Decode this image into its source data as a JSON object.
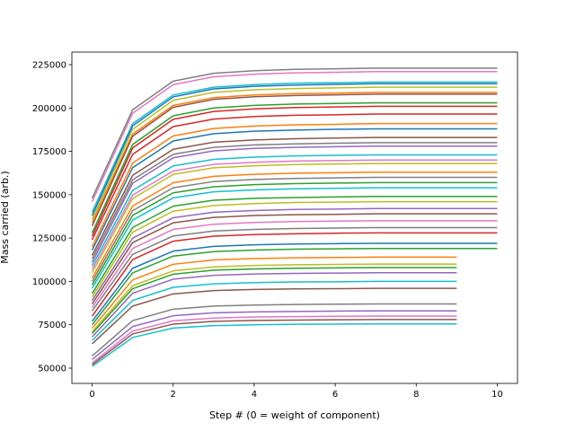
{
  "chart_data": {
    "type": "line",
    "xlabel": "Step # (0 = weight of component)",
    "ylabel": "Mass carried (arb.)",
    "x": [
      0,
      1,
      2,
      3,
      4,
      5,
      6,
      7,
      8,
      9,
      10
    ],
    "xlim": [
      -0.5,
      10.5
    ],
    "xticks": [
      0,
      2,
      4,
      6,
      8,
      10
    ],
    "ylim": [
      41200,
      232250
    ],
    "yticks": [
      50000,
      75000,
      100000,
      125000,
      150000,
      175000,
      200000,
      225000
    ],
    "grid": false,
    "series": [
      {
        "color": "#7f7f7f",
        "values": [
          148000,
          199000,
          215500,
          220000,
          221500,
          222300,
          222600,
          223000,
          223000,
          223000,
          223000
        ]
      },
      {
        "color": "#e377c2",
        "values": [
          146000,
          197000,
          213500,
          218000,
          219500,
          220300,
          220600,
          221000,
          221000,
          221000,
          221000
        ]
      },
      {
        "color": "#17becf",
        "values": [
          140000,
          191000,
          207500,
          212000,
          213500,
          214300,
          214600,
          215000,
          215000,
          215000,
          215000
        ]
      },
      {
        "color": "#1f77b4",
        "values": [
          138000,
          189700,
          206400,
          211000,
          212500,
          213200,
          213600,
          214000,
          214000,
          214000,
          214000
        ]
      },
      {
        "color": "#bcbd22",
        "values": [
          136000,
          187700,
          204400,
          209000,
          210500,
          211200,
          211600,
          212000,
          212000,
          212000,
          212000
        ]
      },
      {
        "color": "#ff7f0e",
        "values": [
          134000,
          185000,
          201500,
          206000,
          207500,
          208300,
          208600,
          209000,
          209000,
          209000,
          209000
        ]
      },
      {
        "color": "#8c564b",
        "values": [
          132000,
          183700,
          200400,
          205000,
          206500,
          207200,
          207600,
          208000,
          208000,
          208000,
          208000
        ]
      },
      {
        "color": "#2ca02c",
        "values": [
          128000,
          179000,
          195500,
          200000,
          201500,
          202300,
          202600,
          203000,
          203000,
          203000,
          203000
        ]
      },
      {
        "color": "#d62728",
        "values": [
          126000,
          177000,
          193500,
          198000,
          199500,
          200300,
          200600,
          201000,
          201000,
          201000,
          201000
        ]
      },
      {
        "color": "#d62728",
        "values": [
          124000,
          173300,
          189300,
          193600,
          195100,
          195800,
          196100,
          196500,
          196500,
          196500,
          196500
        ]
      },
      {
        "color": "#ff7f0e",
        "values": [
          120000,
          168300,
          183900,
          188200,
          189600,
          190300,
          190600,
          191000,
          191000,
          191000,
          191000
        ]
      },
      {
        "color": "#1f77b4",
        "values": [
          118000,
          165600,
          181000,
          185200,
          186600,
          187300,
          187700,
          188000,
          188000,
          188000,
          188000
        ]
      },
      {
        "color": "#8c564b",
        "values": [
          115000,
          161200,
          176200,
          180300,
          181600,
          182300,
          182700,
          183000,
          183000,
          183000,
          183000
        ]
      },
      {
        "color": "#7f7f7f",
        "values": [
          113000,
          158600,
          173300,
          177300,
          178700,
          179300,
          179700,
          180000,
          180000,
          180000,
          180000
        ]
      },
      {
        "color": "#9467bd",
        "values": [
          111000,
          156600,
          171300,
          175300,
          176700,
          177300,
          177700,
          178000,
          178000,
          178000,
          178000
        ]
      },
      {
        "color": "#17becf",
        "values": [
          109000,
          152500,
          166600,
          170400,
          171700,
          172400,
          172700,
          173000,
          173000,
          173000,
          173000
        ]
      },
      {
        "color": "#e377c2",
        "values": [
          107000,
          149800,
          163700,
          167500,
          168700,
          169400,
          169700,
          170000,
          170000,
          170000,
          170000
        ]
      },
      {
        "color": "#bcbd22",
        "values": [
          105000,
          147800,
          161700,
          165500,
          166700,
          167400,
          167700,
          168000,
          168000,
          168000,
          168000
        ]
      },
      {
        "color": "#ff7f0e",
        "values": [
          102000,
          143500,
          156900,
          160600,
          161800,
          162400,
          162700,
          163000,
          163000,
          163000,
          163000
        ]
      },
      {
        "color": "#7f7f7f",
        "values": [
          100000,
          140800,
          154000,
          157600,
          158800,
          159400,
          159700,
          160000,
          160000,
          160000,
          160000
        ]
      },
      {
        "color": "#2ca02c",
        "values": [
          98000,
          138100,
          151100,
          154600,
          155800,
          156400,
          156700,
          157000,
          157000,
          157000,
          157000
        ]
      },
      {
        "color": "#17becf",
        "values": [
          96000,
          135400,
          148200,
          151700,
          152800,
          153400,
          153700,
          154000,
          154000,
          154000,
          154000
        ]
      },
      {
        "color": "#2ca02c",
        "values": [
          93000,
          131100,
          143400,
          146800,
          147900,
          148400,
          148700,
          149000,
          149000,
          149000,
          149000
        ]
      },
      {
        "color": "#bcbd22",
        "values": [
          91000,
          128400,
          140500,
          143800,
          144900,
          145500,
          145700,
          146000,
          146000,
          146000,
          146000
        ]
      },
      {
        "color": "#9467bd",
        "values": [
          89000,
          125000,
          136700,
          139900,
          140900,
          141500,
          141700,
          142000,
          142000,
          142000,
          142000
        ]
      },
      {
        "color": "#8c564b",
        "values": [
          87000,
          122400,
          133800,
          136900,
          138000,
          138500,
          138700,
          139000,
          139000,
          139000,
          139000
        ]
      },
      {
        "color": "#e377c2",
        "values": [
          85000,
          119000,
          130000,
          133000,
          134000,
          134500,
          134800,
          135000,
          135000,
          135000,
          135000
        ]
      },
      {
        "color": "#7f7f7f",
        "values": [
          83000,
          115600,
          126200,
          129100,
          130000,
          130500,
          130800,
          131000,
          131000,
          131000,
          131000
        ]
      },
      {
        "color": "#d62728",
        "values": [
          80000,
          112600,
          123200,
          126100,
          127000,
          127500,
          127800,
          128000,
          128000,
          128000,
          128000
        ]
      },
      {
        "color": "#1f77b4",
        "values": [
          77000,
          107600,
          117500,
          120200,
          121100,
          121600,
          121800,
          122000,
          122000,
          122000,
          122000
        ]
      },
      {
        "color": "#2ca02c",
        "values": [
          75000,
          104900,
          114600,
          117200,
          118100,
          118600,
          118800,
          119000,
          119000,
          119000,
          119000
        ]
      },
      {
        "color": "#ff7f0e",
        "values": [
          73000,
          100900,
          109900,
          112400,
          113200,
          113600,
          113800,
          114000,
          114000,
          114000,
          null
        ]
      },
      {
        "color": "#bcbd22",
        "values": [
          71000,
          97500,
          106100,
          108400,
          109200,
          109600,
          109800,
          110000,
          110000,
          110000,
          null
        ]
      },
      {
        "color": "#2ca02c",
        "values": [
          70000,
          95800,
          104200,
          106500,
          107200,
          107600,
          107800,
          108000,
          108000,
          108000,
          null
        ]
      },
      {
        "color": "#9467bd",
        "values": [
          68000,
          93200,
          101300,
          103500,
          104300,
          104600,
          104800,
          105000,
          105000,
          105000,
          null
        ]
      },
      {
        "color": "#17becf",
        "values": [
          66000,
          89100,
          96600,
          98600,
          99300,
          99700,
          99800,
          100000,
          100000,
          100000,
          null
        ]
      },
      {
        "color": "#8c564b",
        "values": [
          64000,
          85800,
          92800,
          94700,
          95400,
          95700,
          95800,
          96000,
          96000,
          96000,
          null
        ]
      },
      {
        "color": "#7f7f7f",
        "values": [
          57000,
          77400,
          84000,
          85800,
          86400,
          86700,
          86900,
          87000,
          87000,
          87000,
          null
        ]
      },
      {
        "color": "#9467bd",
        "values": [
          55000,
          74000,
          80200,
          81900,
          82400,
          82700,
          82900,
          83000,
          83000,
          83000,
          null
        ]
      },
      {
        "color": "#e377c2",
        "values": [
          53000,
          71400,
          77300,
          78900,
          79500,
          79700,
          79900,
          80000,
          80000,
          80000,
          null
        ]
      },
      {
        "color": "#8c564b",
        "values": [
          52000,
          69700,
          75400,
          77000,
          77500,
          77700,
          77900,
          78000,
          78000,
          78000,
          null
        ]
      },
      {
        "color": "#17becf",
        "values": [
          51000,
          67700,
          73100,
          74500,
          75000,
          75300,
          75400,
          75500,
          75500,
          75500,
          null
        ]
      }
    ]
  }
}
